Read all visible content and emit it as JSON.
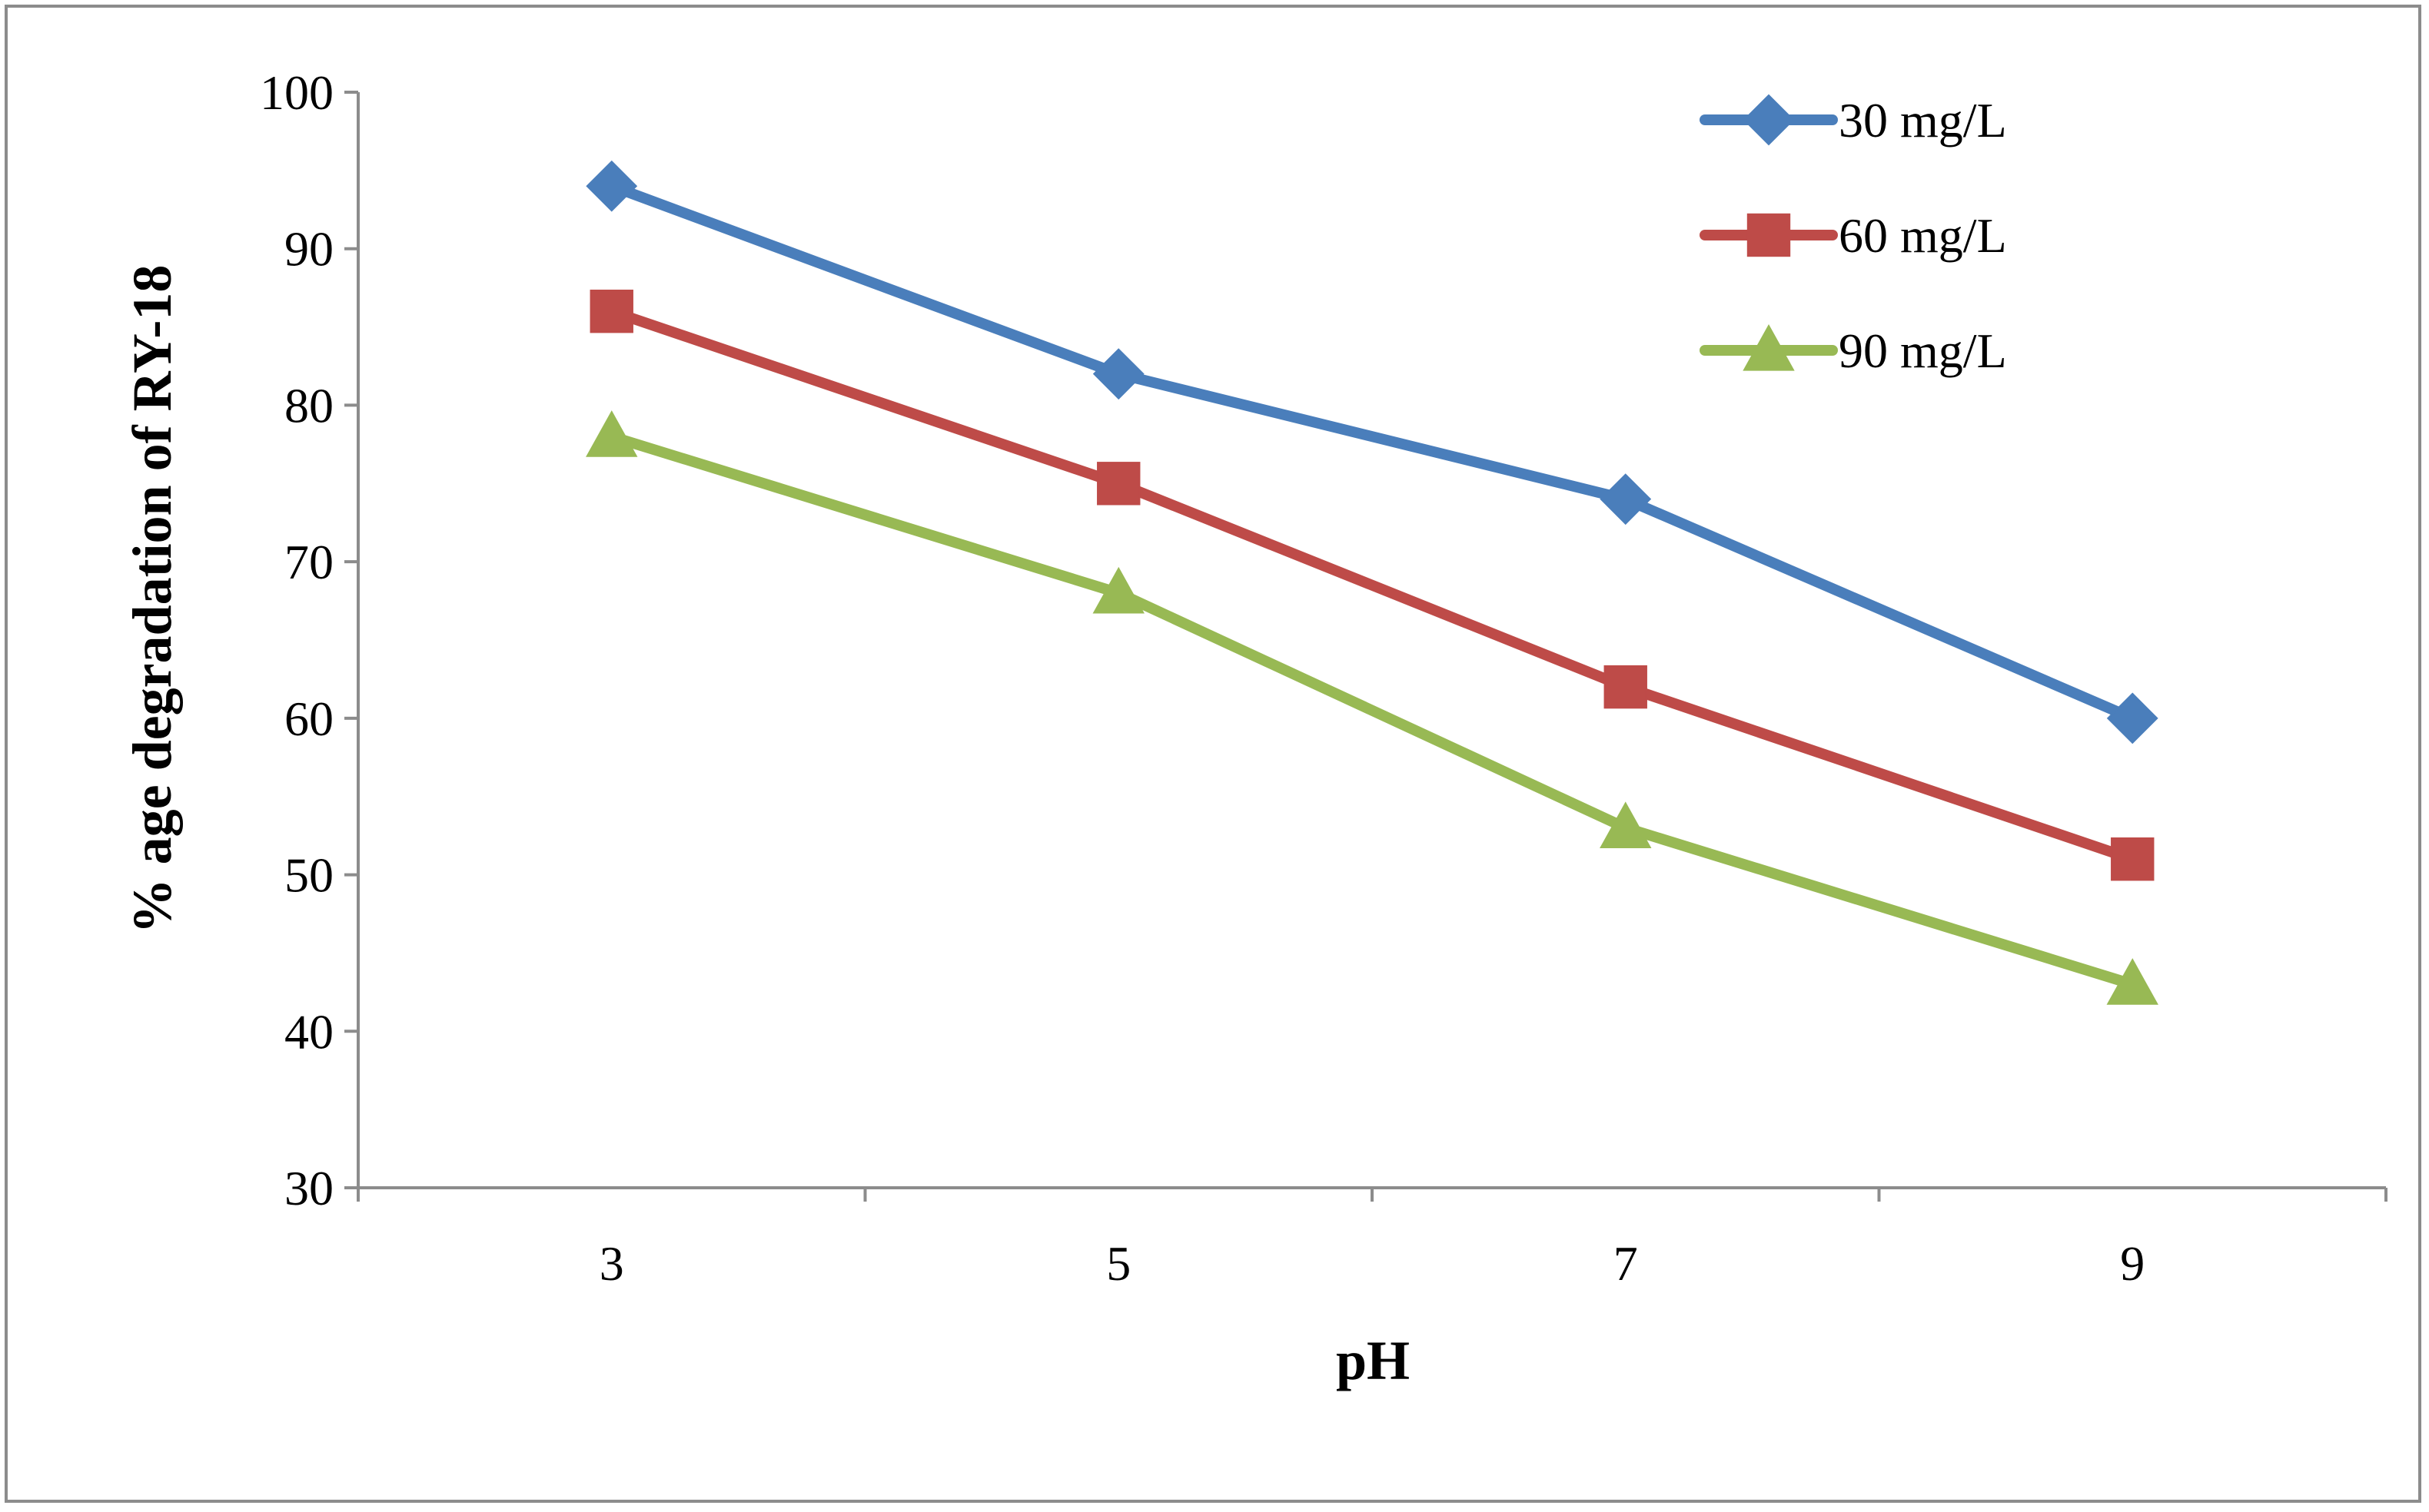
{
  "chart_data": {
    "type": "line",
    "title": "",
    "xlabel": "pH",
    "ylabel": "% age degradation of RY-18",
    "categories": [
      "3",
      "5",
      "7",
      "9"
    ],
    "x": [
      3,
      5,
      7,
      9
    ],
    "xlim": [
      2,
      10
    ],
    "ylim": [
      30,
      100
    ],
    "yticks": [
      30,
      40,
      50,
      60,
      70,
      80,
      90,
      100
    ],
    "grid": false,
    "legend_position": "top-right",
    "series": [
      {
        "name": "30 mg/L",
        "values": [
          94,
          82,
          74,
          60
        ],
        "color": "#4a7ebb",
        "marker": "diamond"
      },
      {
        "name": "60 mg/L",
        "values": [
          86,
          75,
          62,
          51
        ],
        "color": "#be4b48",
        "marker": "square"
      },
      {
        "name": "90 mg/L",
        "values": [
          78,
          68,
          53,
          43
        ],
        "color": "#98b954",
        "marker": "triangle"
      }
    ]
  }
}
